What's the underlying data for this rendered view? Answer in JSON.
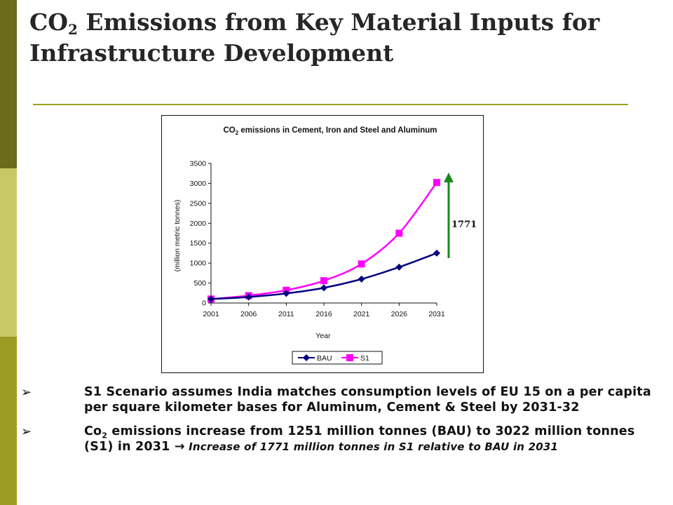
{
  "slide": {
    "title_prefix": "CO",
    "title_sub": "2",
    "title_rest": " Emissions from Key Material Inputs for Infrastructure Development"
  },
  "colors": {
    "sidebar_dark": "#6b6b1c",
    "sidebar_light": "#c9c964",
    "sidebar_mid": "#9b9b24",
    "rule": "#a0a020",
    "bau": "#000080",
    "s1": "#ff00ff",
    "arrow": "#1a8a1a"
  },
  "chart_data": {
    "type": "line",
    "title_prefix": "CO",
    "title_sub": "2",
    "title_rest": " emissions in Cement, Iron and Steel and Aluminum",
    "xlabel": "Year",
    "ylabel": "(million metric tonnes)",
    "categories": [
      "2001",
      "2006",
      "2011",
      "2016",
      "2021",
      "2026",
      "2031"
    ],
    "yticks": [
      "0",
      "500",
      "1000",
      "1500",
      "2000",
      "2500",
      "3000",
      "3500"
    ],
    "ylim": [
      0,
      3500
    ],
    "grid": false,
    "legend_position": "bottom",
    "series": [
      {
        "name": "BAU",
        "marker": "diamond",
        "values": [
          100,
          150,
          240,
          380,
          600,
          900,
          1251
        ]
      },
      {
        "name": "S1",
        "marker": "square",
        "values": [
          100,
          185,
          320,
          560,
          980,
          1750,
          3022
        ]
      }
    ],
    "annotation": "1771"
  },
  "bullets": [
    {
      "mark": "➢",
      "text": "S1 Scenario assumes India matches consumption levels of EU 15 on a per capita per square kilometer bases for Aluminum, Cement & Steel by 2031-32"
    },
    {
      "mark": "➢",
      "text_a": "Co",
      "text_sub": "2",
      "text_b": " emissions increase from 1251 million tonnes (BAU) to 3022 million tonnes (S1) in 2031 ",
      "arrow": "→",
      "note": " Increase of 1771 million tonnes in S1 relative to BAU in 2031"
    }
  ]
}
